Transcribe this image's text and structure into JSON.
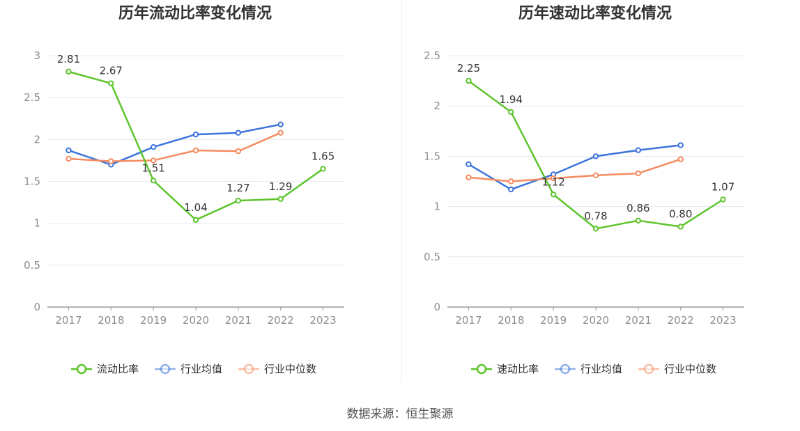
{
  "colors": {
    "primary": "#5ec42d",
    "average": "#3b74db",
    "median": "#f68b60",
    "grid": "#e6e9f0",
    "axis": "#999999"
  },
  "chart_data": [
    {
      "type": "line",
      "title": "历年流动比率变化情况",
      "categories": [
        "2017",
        "2018",
        "2019",
        "2020",
        "2021",
        "2022",
        "2023"
      ],
      "ylim": [
        0,
        3
      ],
      "yticks": [
        "0",
        "0.5",
        "1",
        "1.5",
        "2",
        "2.5",
        "3"
      ],
      "ytick_values": [
        0,
        0.5,
        1,
        1.5,
        2,
        2.5,
        3
      ],
      "grid": true,
      "legend_position": "bottom",
      "series": [
        {
          "name": "流动比率",
          "values": [
            2.81,
            2.67,
            1.51,
            1.04,
            1.27,
            1.29,
            1.65
          ],
          "labels": [
            "2.81",
            "2.67",
            "1.51",
            "1.04",
            "1.27",
            "1.29",
            "1.65"
          ]
        },
        {
          "name": "行业均值",
          "values": [
            1.87,
            1.7,
            1.91,
            2.06,
            2.08,
            2.18,
            null
          ]
        },
        {
          "name": "行业中位数",
          "values": [
            1.77,
            1.74,
            1.75,
            1.87,
            1.86,
            2.08,
            null
          ]
        }
      ]
    },
    {
      "type": "line",
      "title": "历年速动比率变化情况",
      "categories": [
        "2017",
        "2018",
        "2019",
        "2020",
        "2021",
        "2022",
        "2023"
      ],
      "ylim": [
        0,
        2.5
      ],
      "yticks": [
        "0",
        "0.5",
        "1",
        "1.5",
        "2",
        "2.5"
      ],
      "ytick_values": [
        0,
        0.5,
        1,
        1.5,
        2,
        2.5
      ],
      "grid": true,
      "legend_position": "bottom",
      "series": [
        {
          "name": "速动比率",
          "values": [
            2.25,
            1.94,
            1.12,
            0.78,
            0.86,
            0.8,
            1.07
          ],
          "labels": [
            "2.25",
            "1.94",
            "1.12",
            "0.78",
            "0.86",
            "0.80",
            "1.07"
          ]
        },
        {
          "name": "行业均值",
          "values": [
            1.42,
            1.17,
            1.32,
            1.5,
            1.56,
            1.61,
            null
          ]
        },
        {
          "name": "行业中位数",
          "values": [
            1.29,
            1.25,
            1.28,
            1.31,
            1.33,
            1.47,
            null
          ]
        }
      ]
    }
  ],
  "footer": {
    "source": "数据来源：恒生聚源"
  }
}
